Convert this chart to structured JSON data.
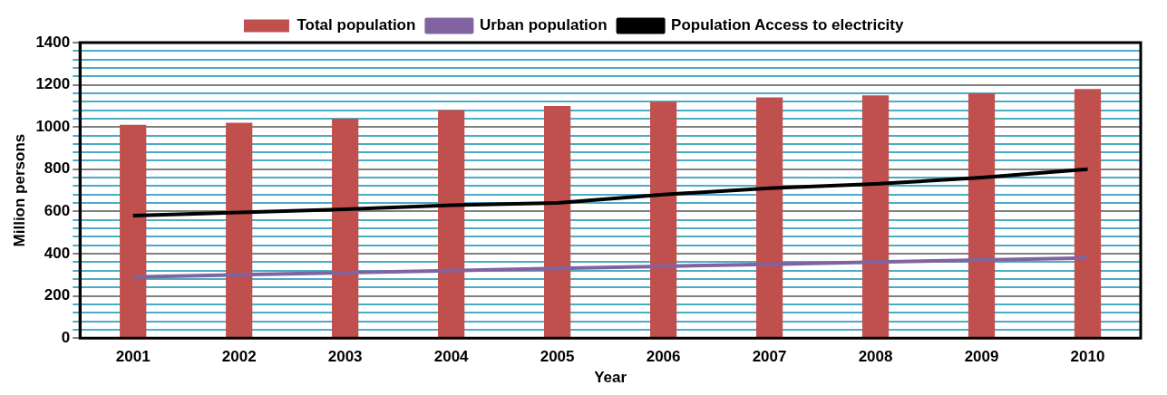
{
  "chart_data": {
    "type": "bar",
    "xlabel": "Year",
    "ylabel": "Million persons",
    "categories": [
      "2001",
      "2002",
      "2003",
      "2004",
      "2005",
      "2006",
      "2007",
      "2008",
      "2009",
      "2010"
    ],
    "series": [
      {
        "name": "Total population",
        "color": "#c0504d",
        "values": [
          1010,
          1020,
          1040,
          1080,
          1100,
          1120,
          1140,
          1150,
          1160,
          1180
        ]
      },
      {
        "name": "Urban population",
        "color": "#8064a2",
        "type": "line",
        "values": [
          290,
          300,
          310,
          320,
          330,
          340,
          350,
          360,
          370,
          380
        ]
      },
      {
        "name": "Population Access to electricity",
        "color": "#000000",
        "type": "line",
        "values": [
          580,
          595,
          610,
          630,
          640,
          680,
          710,
          730,
          760,
          800
        ]
      }
    ],
    "ylim": [
      0,
      1400
    ],
    "yticks": [
      0,
      {
        "value": 40,
        "label": null
      },
      {
        "value": 80,
        "label": null
      },
      {
        "value": 120,
        "label": null
      },
      {
        "value": 160,
        "label": null
      },
      200,
      {
        "value": 240,
        "label": null
      },
      {
        "value": 280,
        "label": null
      },
      {
        "value": 320,
        "label": null
      },
      {
        "value": 360,
        "label": null
      },
      400,
      {
        "value": 440,
        "label": null
      },
      {
        "value": 480,
        "label": null
      },
      {
        "value": 520,
        "label": null
      },
      {
        "value": 560,
        "label": null
      },
      600,
      {
        "value": 640,
        "label": null
      },
      {
        "value": 680,
        "label": null
      },
      {
        "value": 720,
        "label": null
      },
      {
        "value": 760,
        "label": null
      },
      800,
      {
        "value": 840,
        "label": null
      },
      {
        "value": 880,
        "label": null
      },
      {
        "value": 920,
        "label": null
      },
      {
        "value": 960,
        "label": null
      },
      1000,
      {
        "value": 1040,
        "label": null
      },
      {
        "value": 1080,
        "label": null
      },
      {
        "value": 1120,
        "label": null
      },
      {
        "value": 1160,
        "label": null
      },
      1200,
      {
        "value": 1240,
        "label": null
      },
      {
        "value": 1280,
        "label": null
      },
      {
        "value": 1320,
        "label": null
      },
      {
        "value": 1360,
        "label": null
      },
      1400
    ],
    "grid": "y",
    "legend": "top",
    "marker": "none",
    "line_style": "solid"
  }
}
